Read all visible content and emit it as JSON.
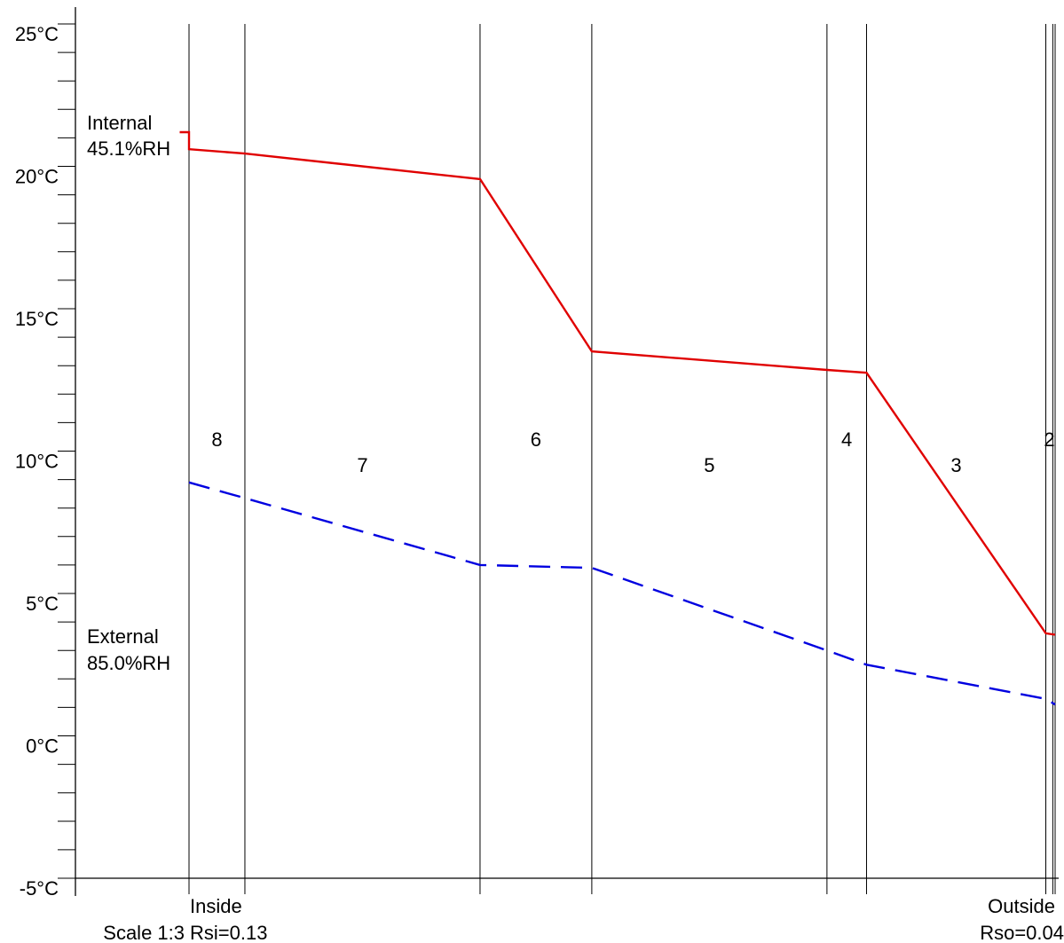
{
  "chart_data": {
    "type": "line",
    "y_unit": "°C",
    "ylim": [
      -5,
      25
    ],
    "y_ticks": [
      {
        "value": 25,
        "label": "25°C"
      },
      {
        "value": 20,
        "label": "20°C"
      },
      {
        "value": 15,
        "label": "15°C"
      },
      {
        "value": 10,
        "label": "10°C"
      },
      {
        "value": 5,
        "label": "5°C"
      },
      {
        "value": 0,
        "label": "0°C"
      },
      {
        "value": -5,
        "label": "-5°C"
      }
    ],
    "y_minor_step": 1,
    "layers": [
      {
        "label": "8",
        "start": 0,
        "end": 12,
        "label_row": "upper"
      },
      {
        "label": "7",
        "start": 12,
        "end": 62.5,
        "label_row": "lower"
      },
      {
        "label": "6",
        "start": 62.5,
        "end": 86.5,
        "label_row": "upper"
      },
      {
        "label": "5",
        "start": 86.5,
        "end": 137,
        "label_row": "lower"
      },
      {
        "label": "4",
        "start": 137,
        "end": 145.5,
        "label_row": "upper"
      },
      {
        "label": "3",
        "start": 145.5,
        "end": 184,
        "label_row": "lower"
      },
      {
        "label": "2",
        "start": 184,
        "end": 185.5,
        "label_row": "upper"
      },
      {
        "label": "",
        "start": 185.5,
        "end": 186,
        "label_row": "lower"
      }
    ],
    "series": [
      {
        "style": "solid",
        "color": "#e00000",
        "points": [
          [
            -2,
            21.2
          ],
          [
            0,
            21.2
          ],
          [
            0,
            20.6
          ],
          [
            12,
            20.45
          ],
          [
            62.5,
            19.55
          ],
          [
            86.5,
            13.5
          ],
          [
            137,
            12.85
          ],
          [
            145.5,
            12.75
          ],
          [
            184,
            3.6
          ],
          [
            186,
            3.55
          ]
        ]
      },
      {
        "style": "dashed",
        "color": "#0000e0",
        "points": [
          [
            0,
            8.9
          ],
          [
            12,
            8.35
          ],
          [
            62.5,
            6.0
          ],
          [
            86.5,
            5.9
          ],
          [
            137,
            3.0
          ],
          [
            145.5,
            2.5
          ],
          [
            184,
            1.3
          ],
          [
            186,
            1.1
          ]
        ]
      }
    ],
    "annotations": {
      "internal_title": "Internal",
      "internal_rh": "45.1%RH",
      "external_title": "External",
      "external_rh": "85.0%RH",
      "inside_label": "Inside",
      "outside_label": "Outside",
      "rsi": "Rsi=0.13",
      "rso": "Rso=0.04",
      "scale": "Scale 1:3"
    },
    "grid": false,
    "legend": "none"
  }
}
